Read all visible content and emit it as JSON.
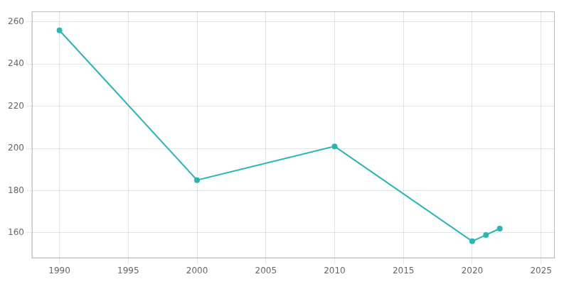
{
  "chart_data": {
    "type": "line",
    "x": [
      1990,
      2000,
      2010,
      2020,
      2021,
      2022
    ],
    "values": [
      256,
      185,
      201,
      156,
      159,
      162
    ],
    "color": "#2ab5b5",
    "marker": "circle",
    "xlim": [
      1988,
      2026
    ],
    "ylim": [
      148,
      265
    ],
    "xticks": [
      1990,
      1995,
      2000,
      2005,
      2010,
      2015,
      2020,
      2025
    ],
    "yticks": [
      160,
      180,
      200,
      220,
      240,
      260
    ],
    "grid": true
  }
}
